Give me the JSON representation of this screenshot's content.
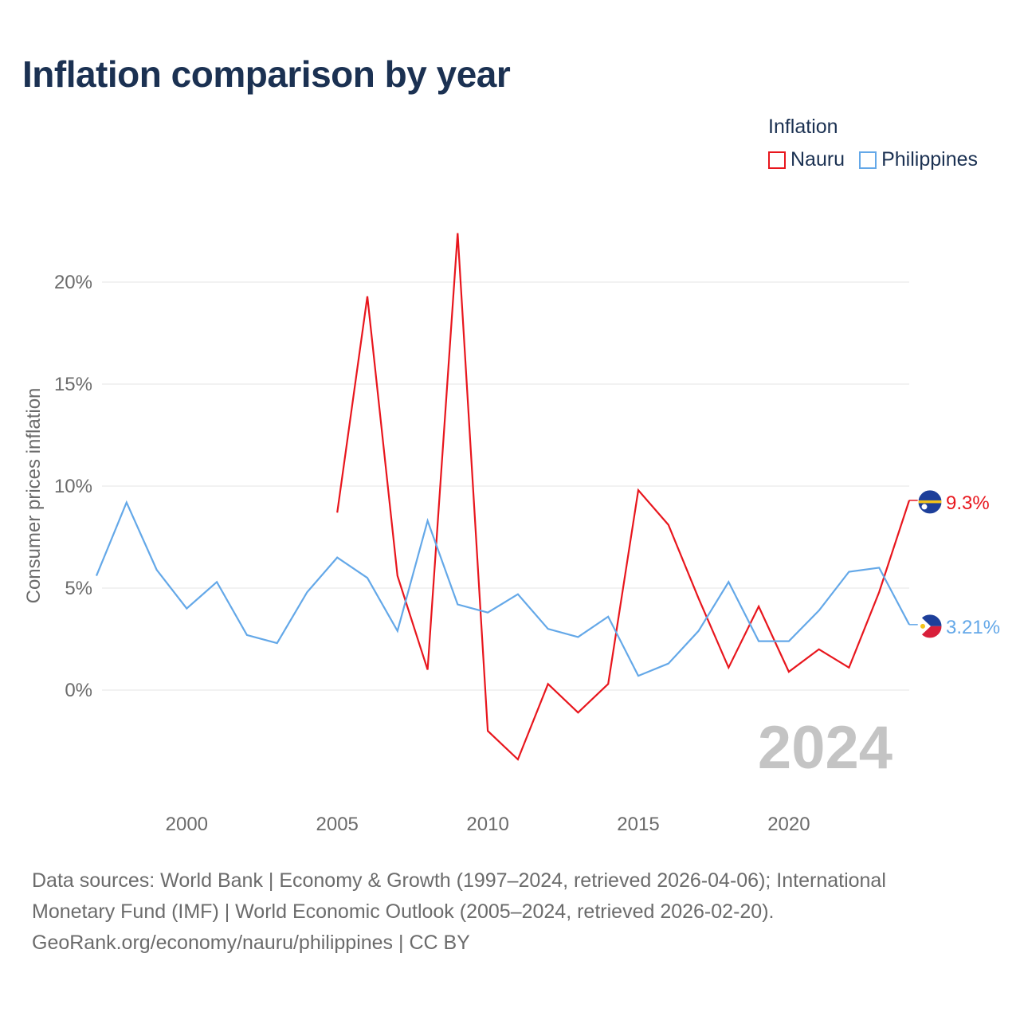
{
  "title": "Inflation comparison by year",
  "legend": {
    "title": "Inflation",
    "items": [
      {
        "label": "Nauru",
        "color": "#e8161d"
      },
      {
        "label": "Philippines",
        "color": "#64a8e8"
      }
    ]
  },
  "chart_data": {
    "type": "line",
    "title": "Inflation comparison by year",
    "ylabel": "Consumer prices inflation",
    "xlabel": "",
    "xlim": [
      1997,
      2024
    ],
    "ylim": [
      -5.5,
      23
    ],
    "y_ticks": [
      0,
      5,
      10,
      15,
      20
    ],
    "y_tick_labels": [
      "0%",
      "5%",
      "10%",
      "15%",
      "20%"
    ],
    "x_ticks": [
      2000,
      2005,
      2010,
      2015,
      2020
    ],
    "x_tick_labels": [
      "2000",
      "2005",
      "2010",
      "2015",
      "2020"
    ],
    "grid": true,
    "legend_position": "top-right",
    "year_watermark": "2024",
    "series": [
      {
        "name": "Nauru",
        "color": "#e8161d",
        "end_label": "9.3%",
        "icon": "nauru-flag-icon",
        "x": [
          2005,
          2006,
          2007,
          2008,
          2009,
          2010,
          2011,
          2012,
          2013,
          2014,
          2015,
          2016,
          2017,
          2018,
          2019,
          2020,
          2021,
          2022,
          2023,
          2024
        ],
        "values": [
          8.7,
          19.3,
          5.6,
          1.0,
          22.4,
          -2.0,
          -3.4,
          0.3,
          -1.1,
          0.3,
          9.8,
          8.1,
          4.5,
          1.1,
          4.1,
          0.9,
          2.0,
          1.1,
          4.8,
          9.3
        ]
      },
      {
        "name": "Philippines",
        "color": "#64a8e8",
        "end_label": "3.21%",
        "icon": "philippines-flag-icon",
        "x": [
          1997,
          1998,
          1999,
          2000,
          2001,
          2002,
          2003,
          2004,
          2005,
          2006,
          2007,
          2008,
          2009,
          2010,
          2011,
          2012,
          2013,
          2014,
          2015,
          2016,
          2017,
          2018,
          2019,
          2020,
          2021,
          2022,
          2023,
          2024
        ],
        "values": [
          5.6,
          9.2,
          5.9,
          4.0,
          5.3,
          2.7,
          2.3,
          4.8,
          6.5,
          5.5,
          2.9,
          8.3,
          4.2,
          3.8,
          4.7,
          3.0,
          2.6,
          3.6,
          0.7,
          1.3,
          2.9,
          5.3,
          2.4,
          2.4,
          3.9,
          5.8,
          6.0,
          3.21
        ]
      }
    ]
  },
  "footer": {
    "line1": "Data sources: World Bank | Economy & Growth (1997–2024, retrieved 2026-04-06); International",
    "line2": "Monetary Fund (IMF) | World Economic Outlook (2005–2024, retrieved 2026-02-20).",
    "line3": "GeoRank.org/economy/nauru/philippines | CC BY"
  }
}
